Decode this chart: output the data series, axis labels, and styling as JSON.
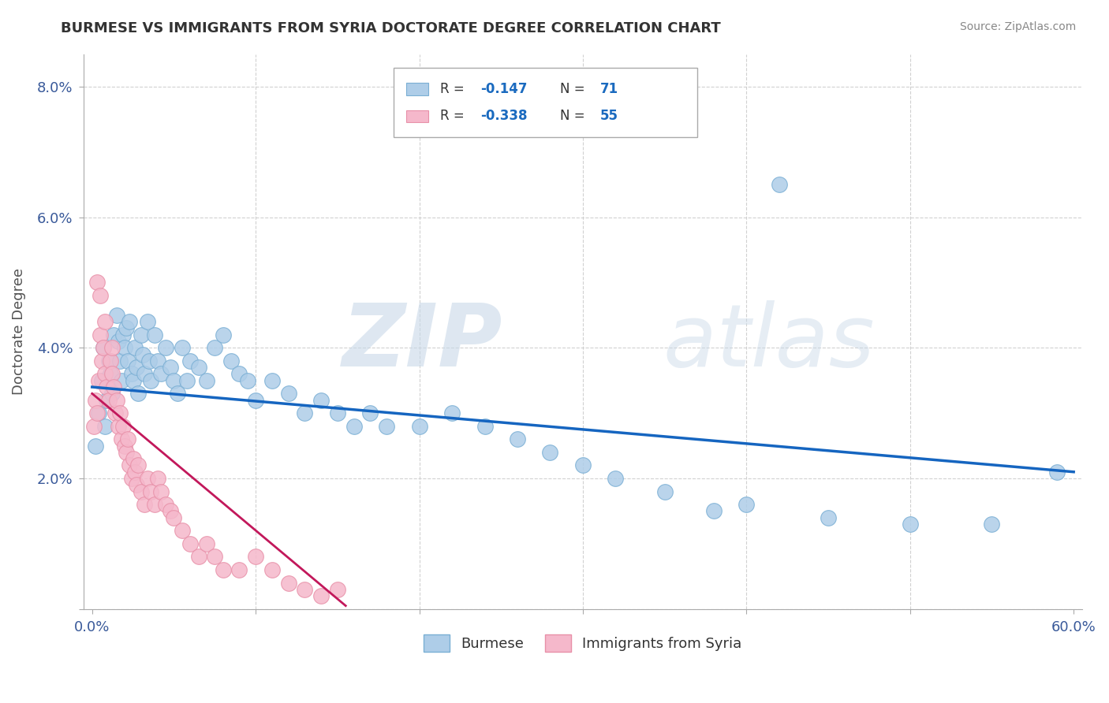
{
  "title": "BURMESE VS IMMIGRANTS FROM SYRIA DOCTORATE DEGREE CORRELATION CHART",
  "source": "Source: ZipAtlas.com",
  "ylabel": "Doctorate Degree",
  "xlim": [
    -0.005,
    0.605
  ],
  "ylim": [
    0,
    0.085
  ],
  "xtick_positions": [
    0.0,
    0.1,
    0.2,
    0.3,
    0.4,
    0.5,
    0.6
  ],
  "xtick_labels": [
    "0.0%",
    "",
    "",
    "",
    "",
    "",
    "60.0%"
  ],
  "ytick_positions": [
    0.0,
    0.02,
    0.04,
    0.06,
    0.08
  ],
  "ytick_labels": [
    "",
    "2.0%",
    "4.0%",
    "6.0%",
    "8.0%"
  ],
  "blue_color_face": "#aecde8",
  "blue_color_edge": "#7aafd4",
  "pink_color_face": "#f5b8cb",
  "pink_color_edge": "#e890a8",
  "trend_blue": "#1565C0",
  "trend_pink": "#c2185b",
  "blue_scatter_x": [
    0.002,
    0.004,
    0.006,
    0.007,
    0.008,
    0.009,
    0.01,
    0.011,
    0.012,
    0.013,
    0.015,
    0.016,
    0.017,
    0.018,
    0.019,
    0.02,
    0.021,
    0.022,
    0.023,
    0.024,
    0.025,
    0.026,
    0.027,
    0.028,
    0.03,
    0.031,
    0.032,
    0.034,
    0.035,
    0.036,
    0.038,
    0.04,
    0.042,
    0.045,
    0.048,
    0.05,
    0.052,
    0.055,
    0.058,
    0.06,
    0.065,
    0.07,
    0.075,
    0.08,
    0.085,
    0.09,
    0.095,
    0.1,
    0.11,
    0.12,
    0.13,
    0.14,
    0.15,
    0.16,
    0.17,
    0.18,
    0.2,
    0.22,
    0.24,
    0.26,
    0.28,
    0.3,
    0.32,
    0.35,
    0.38,
    0.4,
    0.45,
    0.5,
    0.55,
    0.59,
    0.42
  ],
  "blue_scatter_y": [
    0.025,
    0.03,
    0.035,
    0.04,
    0.028,
    0.032,
    0.038,
    0.036,
    0.033,
    0.042,
    0.045,
    0.041,
    0.038,
    0.035,
    0.042,
    0.04,
    0.043,
    0.038,
    0.044,
    0.036,
    0.035,
    0.04,
    0.037,
    0.033,
    0.042,
    0.039,
    0.036,
    0.044,
    0.038,
    0.035,
    0.042,
    0.038,
    0.036,
    0.04,
    0.037,
    0.035,
    0.033,
    0.04,
    0.035,
    0.038,
    0.037,
    0.035,
    0.04,
    0.042,
    0.038,
    0.036,
    0.035,
    0.032,
    0.035,
    0.033,
    0.03,
    0.032,
    0.03,
    0.028,
    0.03,
    0.028,
    0.028,
    0.03,
    0.028,
    0.026,
    0.024,
    0.022,
    0.02,
    0.018,
    0.015,
    0.016,
    0.014,
    0.013,
    0.013,
    0.021,
    0.065
  ],
  "pink_scatter_x": [
    0.001,
    0.002,
    0.003,
    0.004,
    0.005,
    0.006,
    0.007,
    0.008,
    0.009,
    0.01,
    0.011,
    0.012,
    0.013,
    0.014,
    0.015,
    0.016,
    0.017,
    0.018,
    0.019,
    0.02,
    0.021,
    0.022,
    0.023,
    0.024,
    0.025,
    0.026,
    0.027,
    0.028,
    0.03,
    0.032,
    0.034,
    0.036,
    0.038,
    0.04,
    0.042,
    0.045,
    0.048,
    0.05,
    0.055,
    0.06,
    0.065,
    0.07,
    0.075,
    0.08,
    0.09,
    0.1,
    0.11,
    0.12,
    0.13,
    0.14,
    0.003,
    0.005,
    0.008,
    0.012,
    0.15
  ],
  "pink_scatter_y": [
    0.028,
    0.032,
    0.03,
    0.035,
    0.042,
    0.038,
    0.04,
    0.036,
    0.034,
    0.032,
    0.038,
    0.036,
    0.034,
    0.03,
    0.032,
    0.028,
    0.03,
    0.026,
    0.028,
    0.025,
    0.024,
    0.026,
    0.022,
    0.02,
    0.023,
    0.021,
    0.019,
    0.022,
    0.018,
    0.016,
    0.02,
    0.018,
    0.016,
    0.02,
    0.018,
    0.016,
    0.015,
    0.014,
    0.012,
    0.01,
    0.008,
    0.01,
    0.008,
    0.006,
    0.006,
    0.008,
    0.006,
    0.004,
    0.003,
    0.002,
    0.05,
    0.048,
    0.044,
    0.04,
    0.003
  ],
  "blue_trend_x": [
    0.0,
    0.6
  ],
  "blue_trend_y": [
    0.034,
    0.021
  ],
  "pink_trend_x": [
    0.0,
    0.155
  ],
  "pink_trend_y": [
    0.033,
    0.0005
  ],
  "watermark_zip": "ZIP",
  "watermark_atlas": "atlas"
}
